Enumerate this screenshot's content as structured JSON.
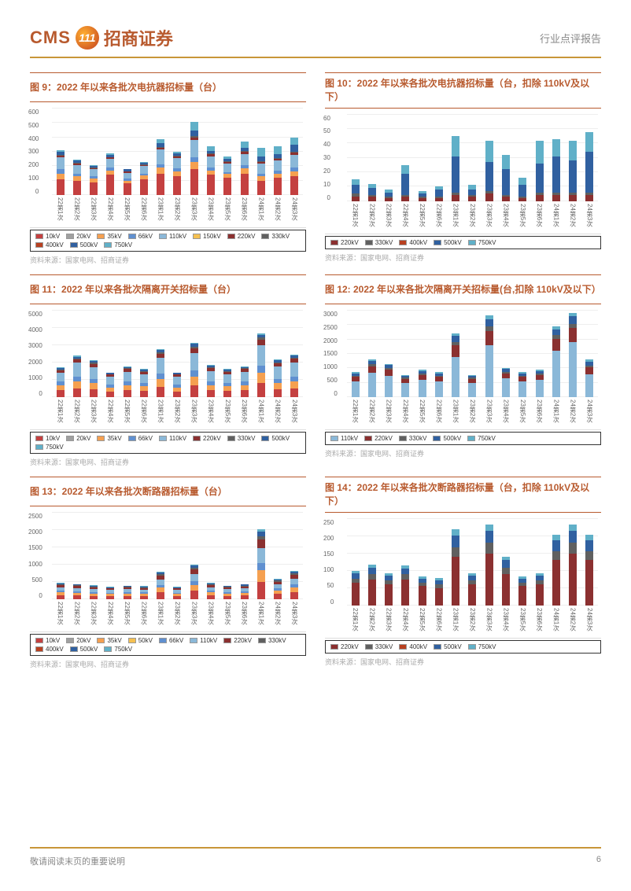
{
  "header": {
    "logo_cms": "CMS",
    "logo_badge": "111",
    "logo_cn": "招商证券",
    "report_type": "行业点评报告"
  },
  "footer": {
    "disclaimer": "敬请阅读末页的重要说明",
    "page": "6"
  },
  "categories": [
    "22第1次",
    "22第2次",
    "22第3次",
    "22第4次",
    "22第5次",
    "22第6次",
    "23第1次",
    "23第2次",
    "23第3次",
    "23第4次",
    "23第5次",
    "23第6次",
    "24第1次",
    "24第2次",
    "24第3次"
  ],
  "colors": {
    "10kV": "#c44040",
    "20kV": "#a0a0a0",
    "35kV": "#f5a050",
    "50kV": "#f5c050",
    "66kV": "#6090d0",
    "110kV": "#8bb8d8",
    "150kV": "#f5c050",
    "220kV": "#8b3030",
    "330kV": "#606060",
    "400kV": "#b84020",
    "500kV": "#3060a0",
    "750kV": "#60b0c8"
  },
  "charts": [
    {
      "id": "fig9",
      "title": "图 9：2022 年以来各批次电抗器招标量（台）",
      "ymax": 600,
      "yticks": [
        0,
        100,
        200,
        300,
        400,
        500,
        600
      ],
      "legend": [
        "10kV",
        "20kV",
        "35kV",
        "66kV",
        "110kV",
        "150kV",
        "220kV",
        "330kV",
        "400kV",
        "500kV",
        "750kV"
      ],
      "series": {
        "10kV": [
          110,
          100,
          90,
          140,
          80,
          110,
          150,
          130,
          180,
          140,
          120,
          150,
          100,
          120,
          130
        ],
        "35kV": [
          40,
          30,
          25,
          30,
          20,
          25,
          40,
          35,
          50,
          30,
          25,
          35,
          30,
          30,
          35
        ],
        "66kV": [
          30,
          20,
          15,
          20,
          15,
          15,
          25,
          20,
          30,
          20,
          15,
          20,
          20,
          20,
          25
        ],
        "110kV": [
          80,
          60,
          50,
          60,
          40,
          50,
          100,
          70,
          120,
          80,
          60,
          80,
          70,
          70,
          90
        ],
        "220kV": [
          15,
          10,
          8,
          10,
          8,
          8,
          15,
          12,
          20,
          12,
          10,
          15,
          12,
          12,
          15
        ],
        "330kV": [
          5,
          4,
          3,
          4,
          3,
          3,
          5,
          4,
          8,
          5,
          4,
          5,
          4,
          4,
          5
        ],
        "500kV": [
          20,
          15,
          12,
          15,
          12,
          12,
          25,
          18,
          40,
          20,
          15,
          25,
          30,
          30,
          50
        ],
        "750kV": [
          10,
          8,
          5,
          8,
          5,
          5,
          30,
          10,
          60,
          30,
          20,
          40,
          60,
          50,
          50
        ]
      },
      "source": "资料来源：国家电网、招商证券"
    },
    {
      "id": "fig10",
      "title": "图 10：2022 年以来各批次电抗器招标量（台，扣除 110kV及以下）",
      "ymax": 60,
      "yticks": [
        0,
        10,
        20,
        30,
        40,
        50,
        60
      ],
      "legend": [
        "220kV",
        "330kV",
        "400kV",
        "500kV",
        "750kV"
      ],
      "series": {
        "220kV": [
          3,
          3,
          2,
          3,
          2,
          2,
          4,
          3,
          5,
          3,
          2,
          4,
          4,
          4,
          4
        ],
        "330kV": [
          2,
          1,
          1,
          1,
          1,
          1,
          2,
          1,
          2,
          1,
          1,
          2,
          2,
          2,
          2
        ],
        "500kV": [
          6,
          5,
          3,
          15,
          2,
          5,
          25,
          4,
          20,
          18,
          8,
          20,
          25,
          22,
          28
        ],
        "750kV": [
          4,
          3,
          2,
          6,
          2,
          2,
          14,
          3,
          15,
          10,
          5,
          16,
          12,
          14,
          14
        ]
      },
      "source": "资料来源：国家电网、招商证券"
    },
    {
      "id": "fig11",
      "title": "图 11：2022 年以来各批次隔离开关招标量（台）",
      "ymax": 5000,
      "yticks": [
        0,
        1000,
        2000,
        3000,
        4000,
        5000
      ],
      "legend": [
        "10kV",
        "20kV",
        "35kV",
        "66kV",
        "110kV",
        "220kV",
        "330kV",
        "500kV",
        "750kV"
      ],
      "series": {
        "10kV": [
          400,
          500,
          450,
          300,
          400,
          350,
          600,
          300,
          700,
          400,
          350,
          400,
          800,
          450,
          500
        ],
        "35kV": [
          300,
          400,
          350,
          250,
          300,
          280,
          450,
          250,
          500,
          300,
          280,
          300,
          600,
          350,
          400
        ],
        "66kV": [
          200,
          280,
          250,
          180,
          220,
          200,
          320,
          180,
          360,
          220,
          200,
          220,
          420,
          260,
          300
        ],
        "110kV": [
          500,
          800,
          700,
          450,
          550,
          500,
          900,
          450,
          1000,
          600,
          500,
          550,
          1200,
          700,
          800
        ],
        "220kV": [
          150,
          200,
          180,
          120,
          150,
          140,
          250,
          120,
          280,
          160,
          140,
          150,
          320,
          200,
          220
        ],
        "330kV": [
          50,
          60,
          55,
          40,
          50,
          45,
          80,
          40,
          90,
          55,
          45,
          50,
          100,
          60,
          70
        ],
        "500kV": [
          80,
          100,
          90,
          60,
          80,
          70,
          130,
          60,
          150,
          85,
          70,
          80,
          170,
          100,
          120
        ],
        "750kV": [
          40,
          50,
          45,
          30,
          40,
          35,
          65,
          30,
          75,
          42,
          35,
          40,
          85,
          50,
          60
        ]
      },
      "source": "资料来源：国家电网、招商证券"
    },
    {
      "id": "fig12",
      "title": "图 12: 2022 年以来各批次隔离开关招标量(台,扣除 110kV及以下）",
      "ymax": 3000,
      "yticks": [
        0,
        500,
        1000,
        1500,
        2000,
        2500,
        3000
      ],
      "legend": [
        "110kV",
        "220kV",
        "330kV",
        "500kV",
        "750kV"
      ],
      "series": {
        "110kV": [
          550,
          850,
          750,
          500,
          600,
          550,
          1400,
          500,
          1800,
          650,
          550,
          600,
          1600,
          1900,
          800
        ],
        "220kV": [
          150,
          220,
          200,
          130,
          160,
          150,
          400,
          130,
          500,
          170,
          150,
          160,
          420,
          500,
          230
        ],
        "330kV": [
          50,
          70,
          60,
          45,
          55,
          50,
          120,
          45,
          150,
          60,
          50,
          55,
          130,
          150,
          75
        ],
        "500kV": [
          80,
          110,
          100,
          65,
          85,
          75,
          200,
          65,
          250,
          95,
          75,
          85,
          200,
          250,
          130
        ],
        "750kV": [
          40,
          55,
          50,
          35,
          45,
          40,
          100,
          35,
          130,
          48,
          40,
          45,
          100,
          125,
          65
        ]
      },
      "source": "资料来源：国家电网、招商证券"
    },
    {
      "id": "fig13",
      "title": "图 13：2022 年以来各批次断路器招标量（台）",
      "ymax": 2500,
      "yticks": [
        0,
        500,
        1000,
        1500,
        2000,
        2500
      ],
      "legend": [
        "10kV",
        "20kV",
        "35kV",
        "50kV",
        "66kV",
        "110kV",
        "220kV",
        "330kV",
        "400kV",
        "500kV",
        "750kV"
      ],
      "series": {
        "10kV": [
          120,
          110,
          100,
          90,
          100,
          95,
          200,
          90,
          250,
          120,
          100,
          110,
          500,
          150,
          200
        ],
        "35kV": [
          80,
          75,
          70,
          60,
          65,
          62,
          130,
          60,
          170,
          80,
          65,
          72,
          350,
          100,
          140
        ],
        "66kV": [
          50,
          45,
          42,
          38,
          40,
          39,
          80,
          38,
          100,
          50,
          40,
          45,
          200,
          60,
          85
        ],
        "110kV": [
          100,
          95,
          88,
          78,
          85,
          82,
          170,
          78,
          210,
          100,
          85,
          92,
          420,
          125,
          175
        ],
        "220kV": [
          60,
          55,
          52,
          46,
          50,
          48,
          100,
          46,
          130,
          60,
          50,
          55,
          250,
          75,
          105
        ],
        "330kV": [
          25,
          22,
          20,
          18,
          20,
          19,
          40,
          18,
          50,
          25,
          20,
          22,
          100,
          30,
          42
        ],
        "500kV": [
          30,
          28,
          26,
          23,
          25,
          24,
          50,
          23,
          65,
          30,
          25,
          28,
          130,
          38,
          52
        ],
        "750kV": [
          15,
          14,
          13,
          11,
          12,
          12,
          25,
          11,
          32,
          15,
          12,
          14,
          65,
          19,
          26
        ]
      },
      "source": "资料来源：国家电网、招商证券"
    },
    {
      "id": "fig14",
      "title": "图 14：2022 年以来各批次断路器招标量（台，扣除 110kV及以下）",
      "ymax": 250,
      "yticks": [
        0,
        50,
        100,
        150,
        200,
        250
      ],
      "legend": [
        "220kV",
        "330kV",
        "400kV",
        "500kV",
        "750kV"
      ],
      "series": {
        "220kV": [
          65,
          75,
          60,
          75,
          55,
          50,
          140,
          60,
          150,
          90,
          55,
          60,
          130,
          150,
          130
        ],
        "330kV": [
          12,
          15,
          12,
          14,
          10,
          10,
          28,
          12,
          30,
          18,
          10,
          12,
          26,
          30,
          26
        ],
        "500kV": [
          15,
          18,
          14,
          17,
          12,
          12,
          34,
          14,
          36,
          22,
          12,
          14,
          32,
          36,
          32
        ],
        "750kV": [
          8,
          9,
          7,
          8,
          6,
          6,
          17,
          7,
          18,
          11,
          6,
          7,
          16,
          18,
          16
        ]
      },
      "source": "资料来源：国家电网、招商证券"
    }
  ]
}
